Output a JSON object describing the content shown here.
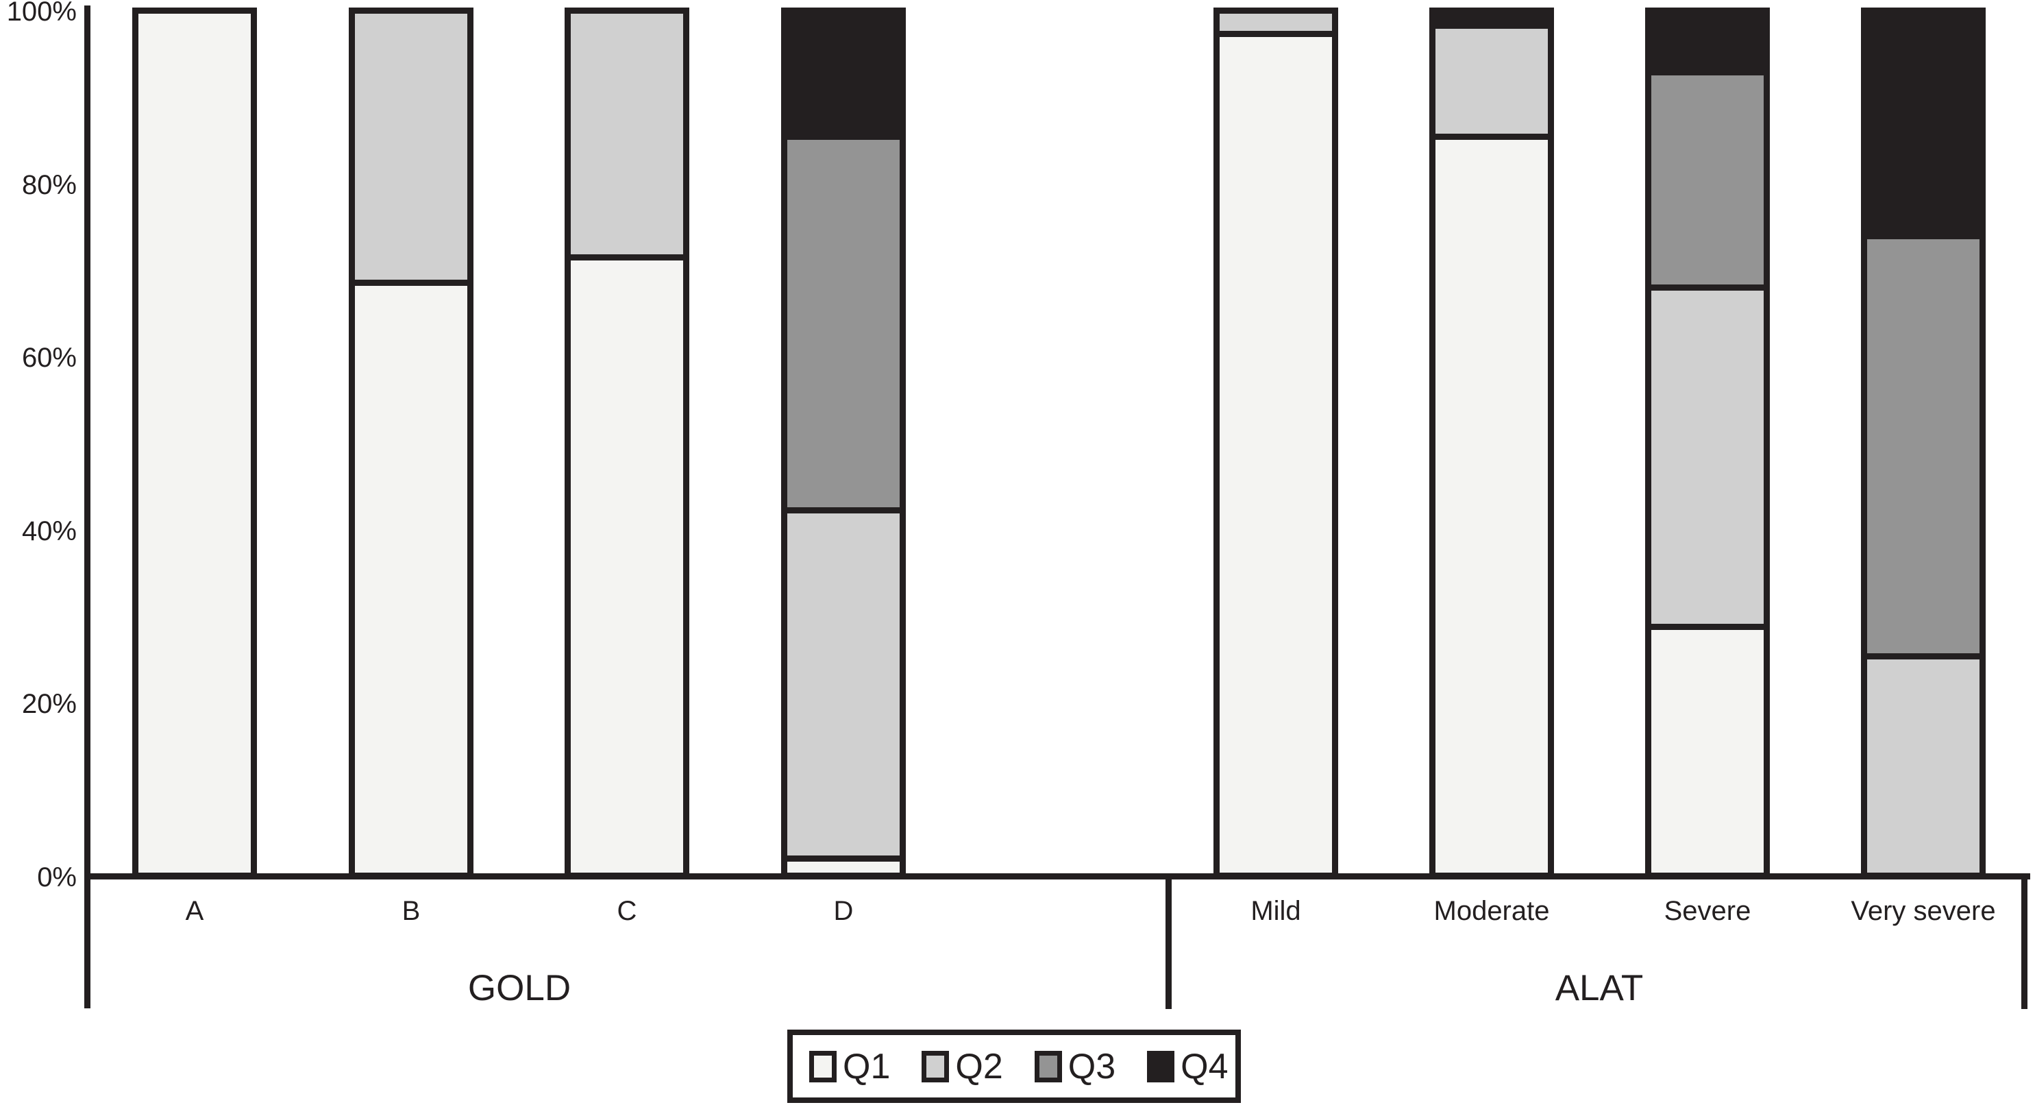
{
  "chart_data": {
    "type": "bar",
    "subtype": "100-percent-stacked-vertical",
    "title": "",
    "ink_color": "#231f20",
    "background_color": "#ffffff",
    "y_axis": {
      "range": [
        0,
        100
      ],
      "tick_step": 20,
      "ticks": [
        {
          "label": "100%",
          "value": 100
        },
        {
          "label": "80%",
          "value": 80
        },
        {
          "label": "60%",
          "value": 60
        },
        {
          "label": "40%",
          "value": 40
        },
        {
          "label": "20%",
          "value": 20
        },
        {
          "label": "0%",
          "value": 0
        }
      ]
    },
    "groups": [
      {
        "label": "GOLD",
        "categories": [
          "A",
          "B",
          "C",
          "D"
        ]
      },
      {
        "label": "ALAT",
        "categories": [
          "Mild",
          "Moderate",
          "Severe",
          "Very severe"
        ]
      }
    ],
    "categories": [
      "A",
      "B",
      "C",
      "D",
      "Mild",
      "Moderate",
      "Severe",
      "Very severe"
    ],
    "stack_order_bottom_to_top": [
      "Q1",
      "Q2",
      "Q3",
      "Q4"
    ],
    "series": [
      {
        "name": "Q1",
        "color": "#f4f4f2",
        "values": [
          100,
          69,
          72,
          2,
          98,
          86,
          29,
          0
        ]
      },
      {
        "name": "Q2",
        "color": "#d0d0d0",
        "values": [
          0,
          31,
          28,
          40.5,
          2,
          13,
          39.5,
          25.5
        ]
      },
      {
        "name": "Q3",
        "color": "#949494",
        "values": [
          0,
          0,
          0,
          43.5,
          0,
          0,
          25,
          49
        ]
      },
      {
        "name": "Q4",
        "color": "#231f20",
        "values": [
          0,
          0,
          0,
          14,
          0,
          1,
          6.5,
          25.5
        ]
      }
    ],
    "legend": {
      "position": "bottom-center",
      "entries": [
        "Q1",
        "Q2",
        "Q3",
        "Q4"
      ]
    },
    "grid": "off"
  }
}
